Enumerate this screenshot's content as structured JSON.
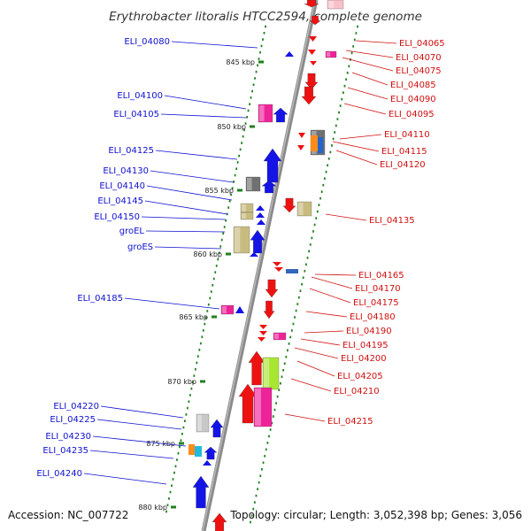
{
  "title": "Erythrobacter litoralis HTCC2594, complete genome",
  "footer": {
    "accession": "Accession: NC_007722",
    "summary": "Topology: circular; Length: 3,052,398 bp; Genes: 3,056"
  },
  "colors": {
    "left_label": "#1010d0",
    "right_label": "#d01010",
    "backbone": "#8a8a8a",
    "tick": "#208020"
  },
  "kbp_markers": [
    "845 kbp",
    "850 kbp",
    "855 kbp",
    "860 kbp",
    "865 kbp",
    "870 kbp",
    "875 kbp",
    "880 kbp"
  ],
  "left_labels": [
    "ELI_04080",
    "ELI_04100",
    "ELI_04105",
    "ELI_04125",
    "ELI_04130",
    "ELI_04140",
    "ELI_04145",
    "ELI_04150",
    "groEL",
    "groES",
    "ELI_04185",
    "ELI_04220",
    "ELI_04225",
    "ELI_04230",
    "ELI_04235",
    "ELI_04240"
  ],
  "right_labels": [
    "ELI_04065",
    "ELI_04070",
    "ELI_04075",
    "ELI_04085",
    "ELI_04090",
    "ELI_04095",
    "ELI_04110",
    "ELI_04115",
    "ELI_04120",
    "ELI_04135",
    "ELI_04165",
    "ELI_04170",
    "ELI_04175",
    "ELI_04180",
    "ELI_04190",
    "ELI_04195",
    "ELI_04200",
    "ELI_04205",
    "ELI_04210",
    "ELI_04215"
  ]
}
